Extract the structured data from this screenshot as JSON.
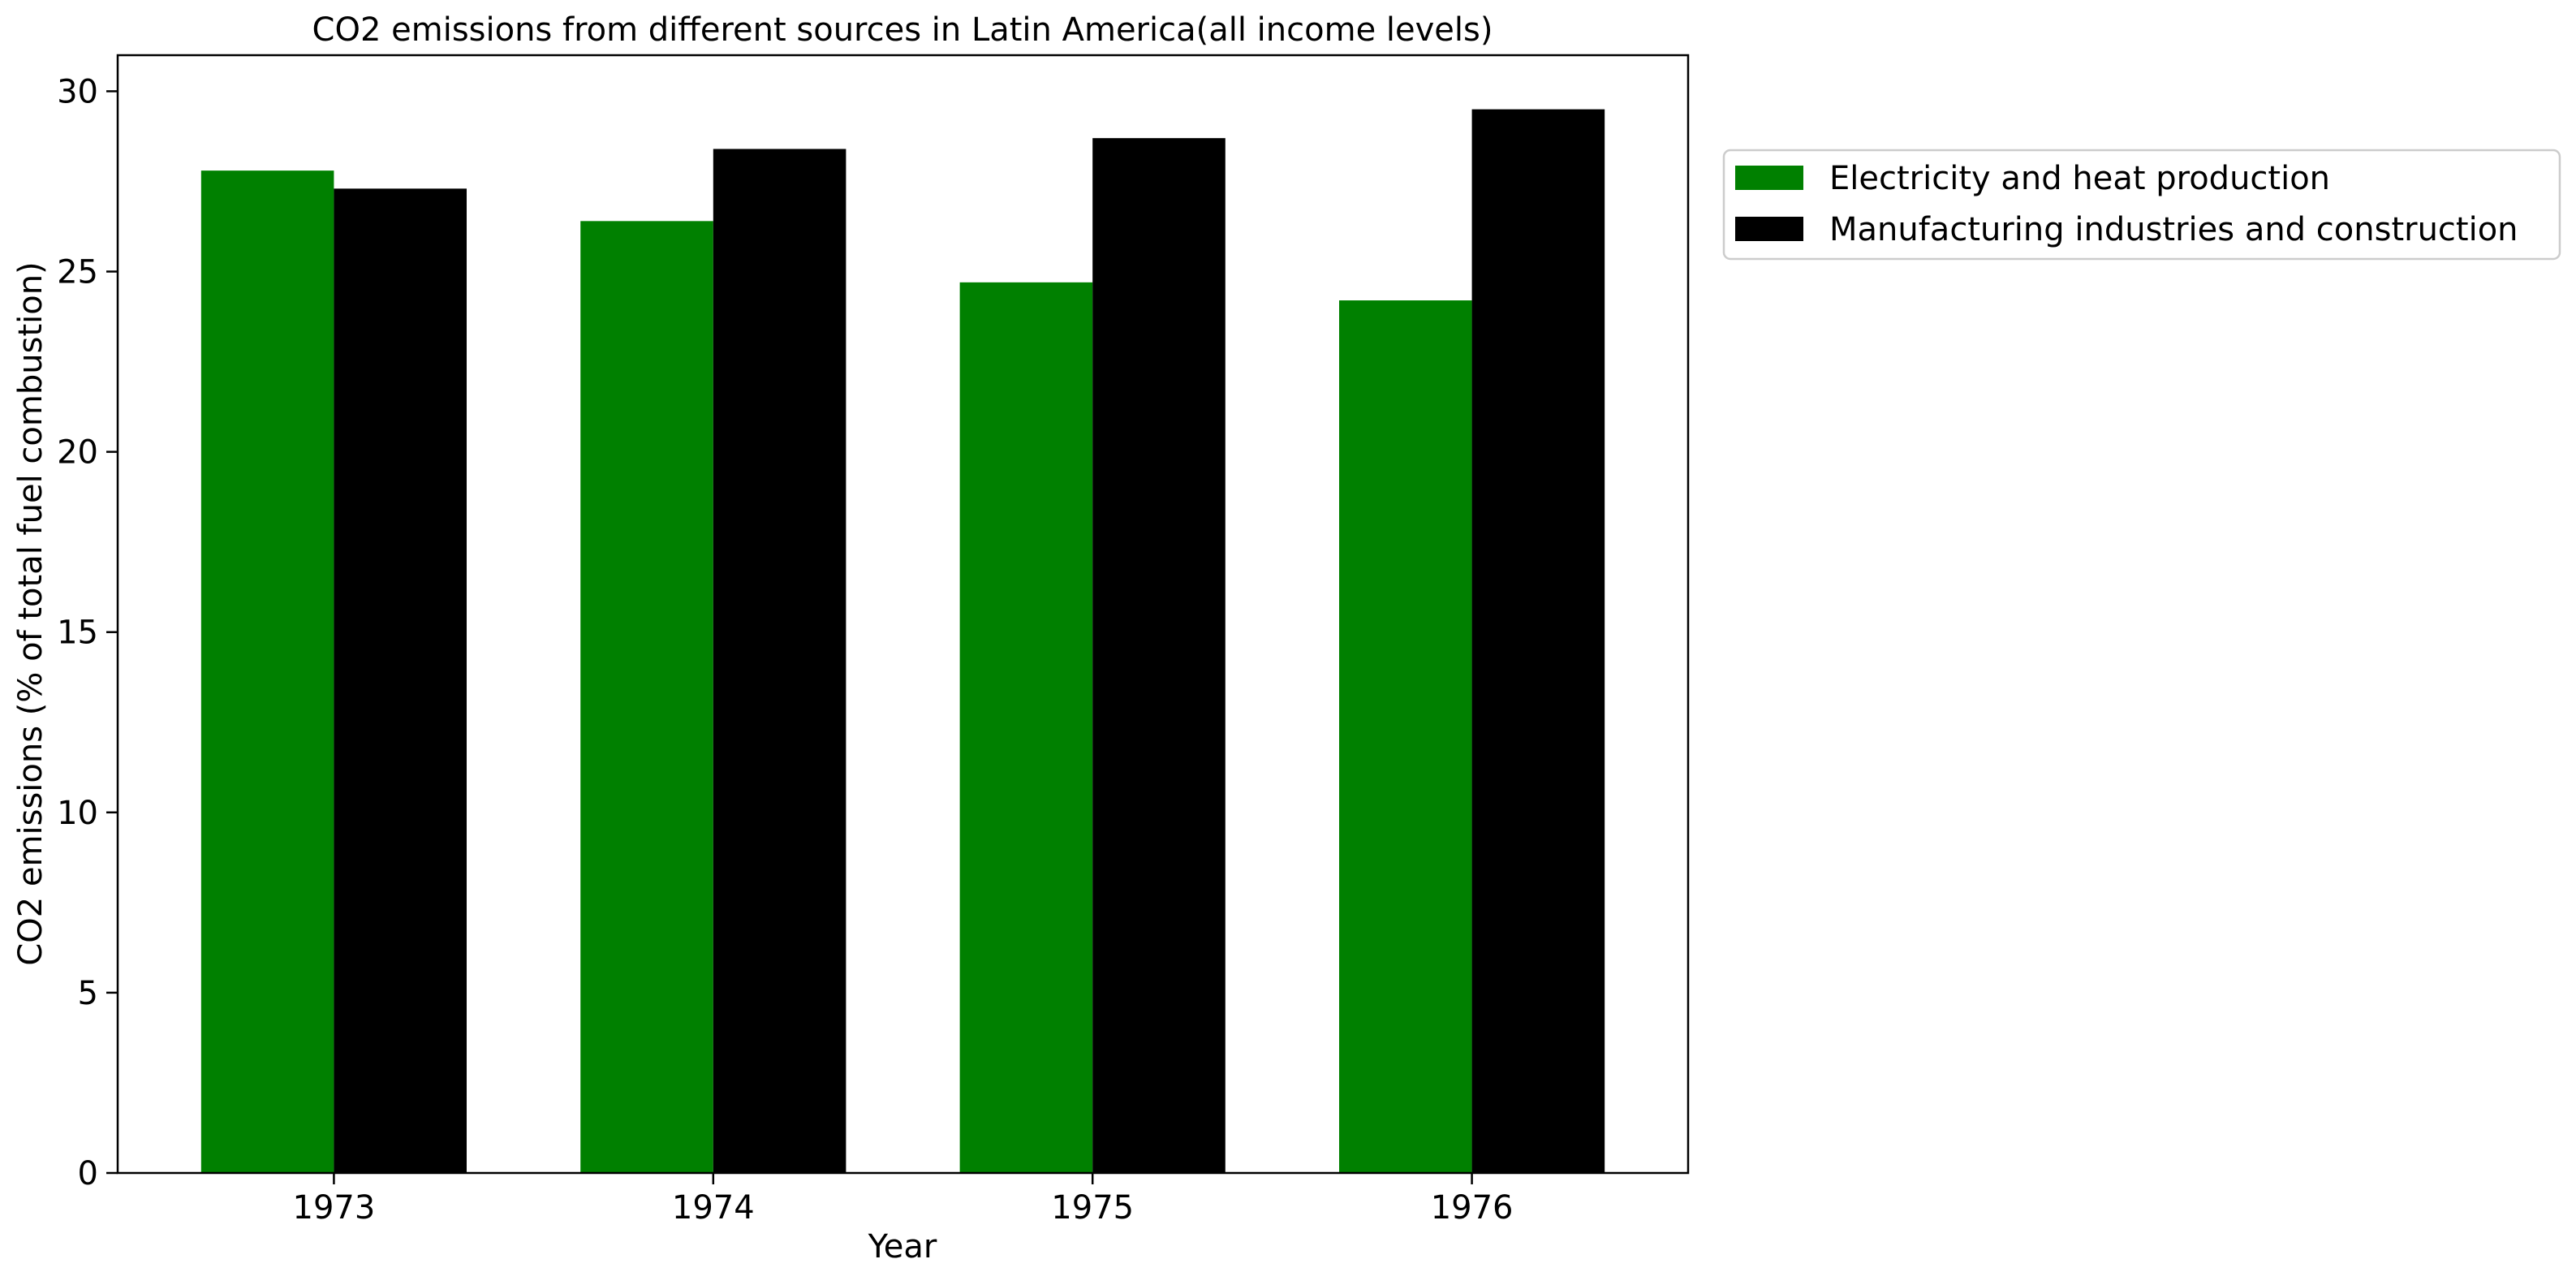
{
  "chart_data": {
    "type": "bar",
    "title": "CO2 emissions from different sources in Latin America(all income levels)",
    "xlabel": "Year",
    "ylabel": "CO2 emissions (% of total fuel combustion)",
    "categories": [
      "1973",
      "1974",
      "1975",
      "1976"
    ],
    "series": [
      {
        "name": "Electricity and heat production",
        "color": "#008000",
        "values": [
          27.8,
          26.4,
          24.7,
          24.2
        ]
      },
      {
        "name": "Manufacturing industries and construction",
        "color": "#000000",
        "values": [
          27.3,
          28.4,
          28.7,
          29.5
        ]
      }
    ],
    "ylim": [
      0,
      31
    ],
    "yticks": [
      0,
      5,
      10,
      15,
      20,
      25,
      30
    ],
    "grid": false,
    "legend_position": "outside-top-right"
  }
}
